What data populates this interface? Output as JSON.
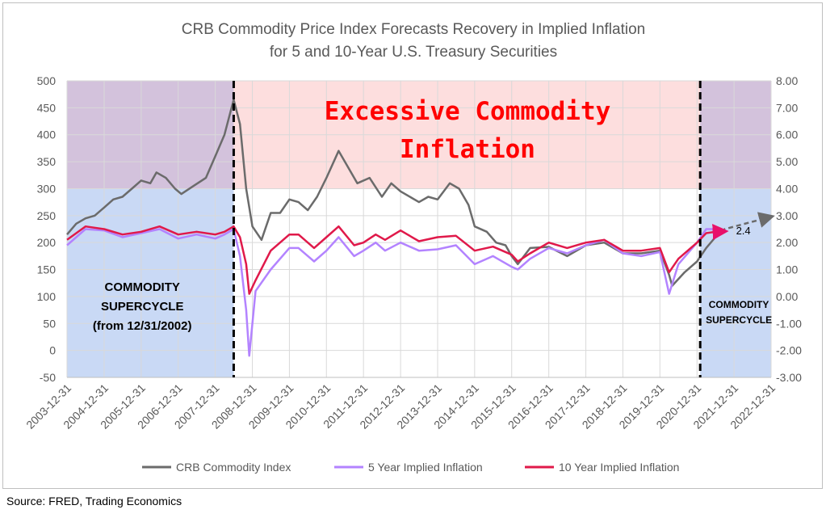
{
  "source_note": "Source: FRED, Trading Economics",
  "chart_data": {
    "type": "line",
    "title": "CRB Commodity Price Index Forecasts Recovery in Implied Inflation",
    "subtitle": "for 5 and 10-Year U.S. Treasury Securities",
    "x_ticks": [
      "2003-12-31",
      "2004-12-31",
      "2005-12-31",
      "2006-12-31",
      "2007-12-31",
      "2008-12-31",
      "2009-12-31",
      "2010-12-31",
      "2011-12-31",
      "2012-12-31",
      "2013-12-31",
      "2014-12-31",
      "2015-12-31",
      "2016-12-31",
      "2017-12-31",
      "2018-12-31",
      "2019-12-31",
      "2020-12-31",
      "2021-12-31",
      "2022-12-31"
    ],
    "y_left": {
      "min": -50,
      "max": 500,
      "ticks": [
        "-50",
        "0",
        "50",
        "100",
        "150",
        "200",
        "250",
        "300",
        "350",
        "400",
        "450",
        "500"
      ]
    },
    "y_right": {
      "min": -3,
      "max": 8,
      "ticks": [
        "-3.00",
        "-2.00",
        "-1.00",
        "0.00",
        "1.00",
        "2.00",
        "3.00",
        "4.00",
        "5.00",
        "6.00",
        "7.00",
        "8.00"
      ]
    },
    "grid": true,
    "legend_position": "bottom",
    "colors": {
      "crb": "#6b6b6b",
      "five": "#b383ff",
      "ten": "#e0194a",
      "supercycle_fill": "#c9d9f5",
      "supercycle_top": "#d3c2dc",
      "excess_fill": "#fddede",
      "annotation_red": "#ff0000",
      "arrow_pink": "#e8106a"
    },
    "regions": [
      {
        "label_lines": [
          "COMMODITY",
          "SUPERCYCLE",
          "(from 12/31/2002)"
        ],
        "x_start": "2003-12-31",
        "x_end": "2008-06-30"
      },
      {
        "label_lines": [
          "COMMODITY",
          "SUPERCYCLE"
        ],
        "x_start": "2021-01-31",
        "x_end": "2022-12-31"
      }
    ],
    "excess_label_lines": [
      "Excessive  Commodity",
      "Inflation"
    ],
    "excess_threshold_left": 300,
    "end_label": "2.4",
    "series": [
      {
        "name": "CRB Commodity Index",
        "axis": "left",
        "points": [
          [
            "2003-12-31",
            215
          ],
          [
            "2004-03-31",
            235
          ],
          [
            "2004-06-30",
            245
          ],
          [
            "2004-09-30",
            250
          ],
          [
            "2004-12-31",
            265
          ],
          [
            "2005-03-31",
            280
          ],
          [
            "2005-06-30",
            285
          ],
          [
            "2005-09-30",
            300
          ],
          [
            "2005-12-31",
            315
          ],
          [
            "2006-03-31",
            310
          ],
          [
            "2006-05-31",
            330
          ],
          [
            "2006-08-31",
            320
          ],
          [
            "2006-11-30",
            300
          ],
          [
            "2007-01-31",
            290
          ],
          [
            "2007-05-31",
            305
          ],
          [
            "2007-09-30",
            320
          ],
          [
            "2007-12-31",
            360
          ],
          [
            "2008-03-31",
            400
          ],
          [
            "2008-06-30",
            465
          ],
          [
            "2008-08-31",
            420
          ],
          [
            "2008-10-31",
            300
          ],
          [
            "2008-12-31",
            230
          ],
          [
            "2009-03-31",
            205
          ],
          [
            "2009-06-30",
            255
          ],
          [
            "2009-09-30",
            255
          ],
          [
            "2009-12-31",
            280
          ],
          [
            "2010-03-31",
            275
          ],
          [
            "2010-06-30",
            260
          ],
          [
            "2010-09-30",
            285
          ],
          [
            "2010-12-31",
            320
          ],
          [
            "2011-04-30",
            370
          ],
          [
            "2011-08-31",
            330
          ],
          [
            "2011-10-31",
            310
          ],
          [
            "2012-02-29",
            320
          ],
          [
            "2012-06-30",
            285
          ],
          [
            "2012-09-30",
            310
          ],
          [
            "2012-12-31",
            295
          ],
          [
            "2013-06-30",
            275
          ],
          [
            "2013-09-30",
            285
          ],
          [
            "2013-12-31",
            280
          ],
          [
            "2014-04-30",
            310
          ],
          [
            "2014-07-31",
            300
          ],
          [
            "2014-10-31",
            270
          ],
          [
            "2014-12-31",
            230
          ],
          [
            "2015-04-30",
            220
          ],
          [
            "2015-07-31",
            200
          ],
          [
            "2015-10-31",
            195
          ],
          [
            "2015-12-31",
            175
          ],
          [
            "2016-02-29",
            160
          ],
          [
            "2016-06-30",
            190
          ],
          [
            "2016-12-31",
            192
          ],
          [
            "2017-06-30",
            175
          ],
          [
            "2017-12-31",
            195
          ],
          [
            "2018-06-30",
            200
          ],
          [
            "2018-12-31",
            180
          ],
          [
            "2019-06-30",
            180
          ],
          [
            "2019-12-31",
            185
          ],
          [
            "2020-03-31",
            140
          ],
          [
            "2020-04-30",
            120
          ],
          [
            "2020-08-31",
            145
          ],
          [
            "2020-12-31",
            165
          ],
          [
            "2021-03-31",
            190
          ],
          [
            "2021-06-30",
            210
          ]
        ]
      },
      {
        "name": "5 Year Implied Inflation",
        "axis": "right",
        "points": [
          [
            "2003-12-31",
            1.9
          ],
          [
            "2004-06-30",
            2.5
          ],
          [
            "2004-12-31",
            2.45
          ],
          [
            "2005-06-30",
            2.2
          ],
          [
            "2005-12-31",
            2.35
          ],
          [
            "2006-06-30",
            2.5
          ],
          [
            "2006-12-31",
            2.15
          ],
          [
            "2007-06-30",
            2.3
          ],
          [
            "2007-12-31",
            2.15
          ],
          [
            "2008-03-31",
            2.3
          ],
          [
            "2008-06-30",
            2.5
          ],
          [
            "2008-08-31",
            1.5
          ],
          [
            "2008-10-31",
            -0.5
          ],
          [
            "2008-11-30",
            -2.2
          ],
          [
            "2009-01-31",
            0.2
          ],
          [
            "2009-06-30",
            1.0
          ],
          [
            "2009-12-31",
            1.8
          ],
          [
            "2010-03-31",
            1.8
          ],
          [
            "2010-08-31",
            1.3
          ],
          [
            "2010-12-31",
            1.7
          ],
          [
            "2011-04-30",
            2.2
          ],
          [
            "2011-09-30",
            1.5
          ],
          [
            "2011-12-31",
            1.7
          ],
          [
            "2012-04-30",
            2.0
          ],
          [
            "2012-07-31",
            1.7
          ],
          [
            "2012-12-31",
            2.0
          ],
          [
            "2013-06-30",
            1.7
          ],
          [
            "2013-12-31",
            1.75
          ],
          [
            "2014-06-30",
            1.9
          ],
          [
            "2014-12-31",
            1.2
          ],
          [
            "2015-06-30",
            1.5
          ],
          [
            "2015-12-31",
            1.1
          ],
          [
            "2016-02-29",
            1.0
          ],
          [
            "2016-06-30",
            1.4
          ],
          [
            "2016-12-31",
            1.8
          ],
          [
            "2017-06-30",
            1.6
          ],
          [
            "2017-12-31",
            1.9
          ],
          [
            "2018-06-30",
            2.1
          ],
          [
            "2018-12-31",
            1.6
          ],
          [
            "2019-06-30",
            1.5
          ],
          [
            "2019-12-31",
            1.65
          ],
          [
            "2020-03-31",
            0.1
          ],
          [
            "2020-06-30",
            1.2
          ],
          [
            "2020-12-31",
            2.0
          ],
          [
            "2021-03-31",
            2.5
          ],
          [
            "2021-06-30",
            2.5
          ]
        ]
      },
      {
        "name": "10 Year Implied Inflation",
        "axis": "right",
        "points": [
          [
            "2003-12-31",
            2.1
          ],
          [
            "2004-06-30",
            2.6
          ],
          [
            "2004-12-31",
            2.5
          ],
          [
            "2005-06-30",
            2.3
          ],
          [
            "2005-12-31",
            2.4
          ],
          [
            "2006-06-30",
            2.6
          ],
          [
            "2006-12-31",
            2.3
          ],
          [
            "2007-06-30",
            2.4
          ],
          [
            "2007-12-31",
            2.3
          ],
          [
            "2008-03-31",
            2.4
          ],
          [
            "2008-06-30",
            2.6
          ],
          [
            "2008-08-31",
            2.2
          ],
          [
            "2008-10-31",
            1.2
          ],
          [
            "2008-11-30",
            0.1
          ],
          [
            "2009-01-31",
            0.6
          ],
          [
            "2009-06-30",
            1.7
          ],
          [
            "2009-12-31",
            2.3
          ],
          [
            "2010-03-31",
            2.3
          ],
          [
            "2010-08-31",
            1.8
          ],
          [
            "2010-12-31",
            2.2
          ],
          [
            "2011-04-30",
            2.6
          ],
          [
            "2011-09-30",
            1.9
          ],
          [
            "2011-12-31",
            2.0
          ],
          [
            "2012-04-30",
            2.3
          ],
          [
            "2012-07-31",
            2.1
          ],
          [
            "2012-12-31",
            2.45
          ],
          [
            "2013-06-30",
            2.05
          ],
          [
            "2013-12-31",
            2.2
          ],
          [
            "2014-06-30",
            2.25
          ],
          [
            "2014-12-31",
            1.7
          ],
          [
            "2015-06-30",
            1.85
          ],
          [
            "2015-12-31",
            1.55
          ],
          [
            "2016-02-29",
            1.3
          ],
          [
            "2016-06-30",
            1.6
          ],
          [
            "2016-12-31",
            2.0
          ],
          [
            "2017-06-30",
            1.8
          ],
          [
            "2017-12-31",
            2.0
          ],
          [
            "2018-06-30",
            2.1
          ],
          [
            "2018-12-31",
            1.7
          ],
          [
            "2019-06-30",
            1.7
          ],
          [
            "2019-12-31",
            1.8
          ],
          [
            "2020-03-31",
            0.9
          ],
          [
            "2020-06-30",
            1.4
          ],
          [
            "2020-12-31",
            2.0
          ],
          [
            "2021-03-31",
            2.35
          ],
          [
            "2021-06-30",
            2.4
          ]
        ]
      }
    ],
    "forecast": {
      "crb": [
        [
          "2021-06-30",
          210
        ],
        [
          "2021-09-30",
          225
        ],
        [
          "2022-12-31",
          248
        ]
      ],
      "ten": [
        [
          "2021-06-30",
          2.4
        ],
        [
          "2021-09-30",
          2.42
        ]
      ]
    }
  }
}
